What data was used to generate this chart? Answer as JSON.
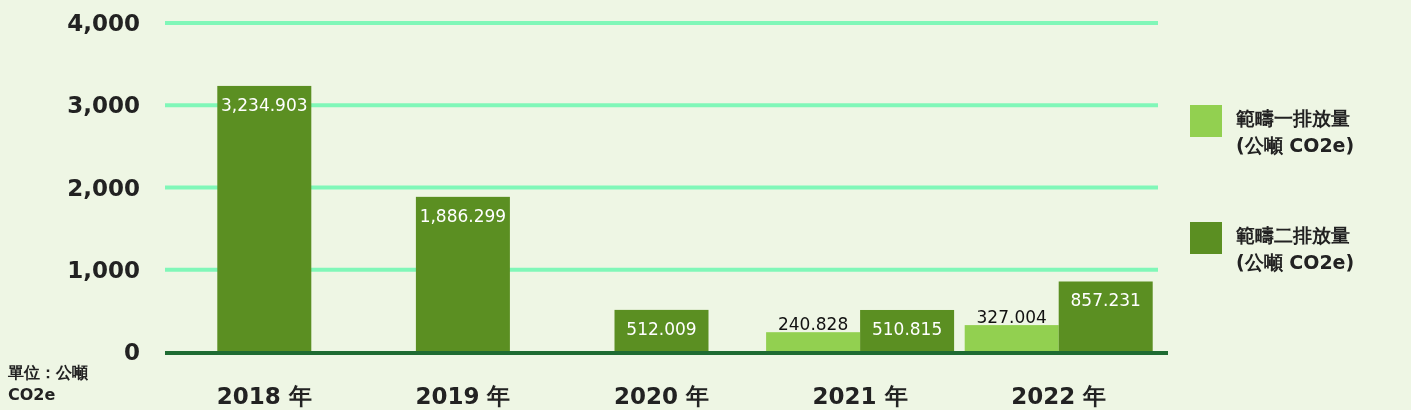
{
  "chart_data": {
    "type": "bar",
    "categories": [
      "2018 年",
      "2019 年",
      "2020 年",
      "2021 年",
      "2022 年"
    ],
    "series": [
      {
        "name": "範疇一排放量 (公噸 CO2e)",
        "color": "#92d050",
        "values": [
          null,
          null,
          null,
          240.828,
          327.004
        ],
        "value_labels": [
          null,
          null,
          null,
          "240.828",
          "327.004"
        ]
      },
      {
        "name": "範疇二排放量 (公噸 CO2e)",
        "color": "#5b8f22",
        "values": [
          3234.903,
          1886.299,
          512.009,
          510.815,
          857.231
        ],
        "value_labels": [
          "3,234.903",
          "1,886.299",
          "512.009",
          "510.815",
          "857.231"
        ]
      }
    ],
    "ylim": [
      0,
      4000
    ],
    "yticks": [
      0,
      {
        "value": 1000,
        "label": "1,000"
      },
      {
        "value": 2000,
        "label": "2,000"
      },
      {
        "value": 3000,
        "label": "3,000"
      },
      {
        "value": 4000,
        "label": "4,000"
      }
    ],
    "grid": "y",
    "legend": "right",
    "annotations": [
      "單位：公噸 CO2e"
    ]
  }
}
